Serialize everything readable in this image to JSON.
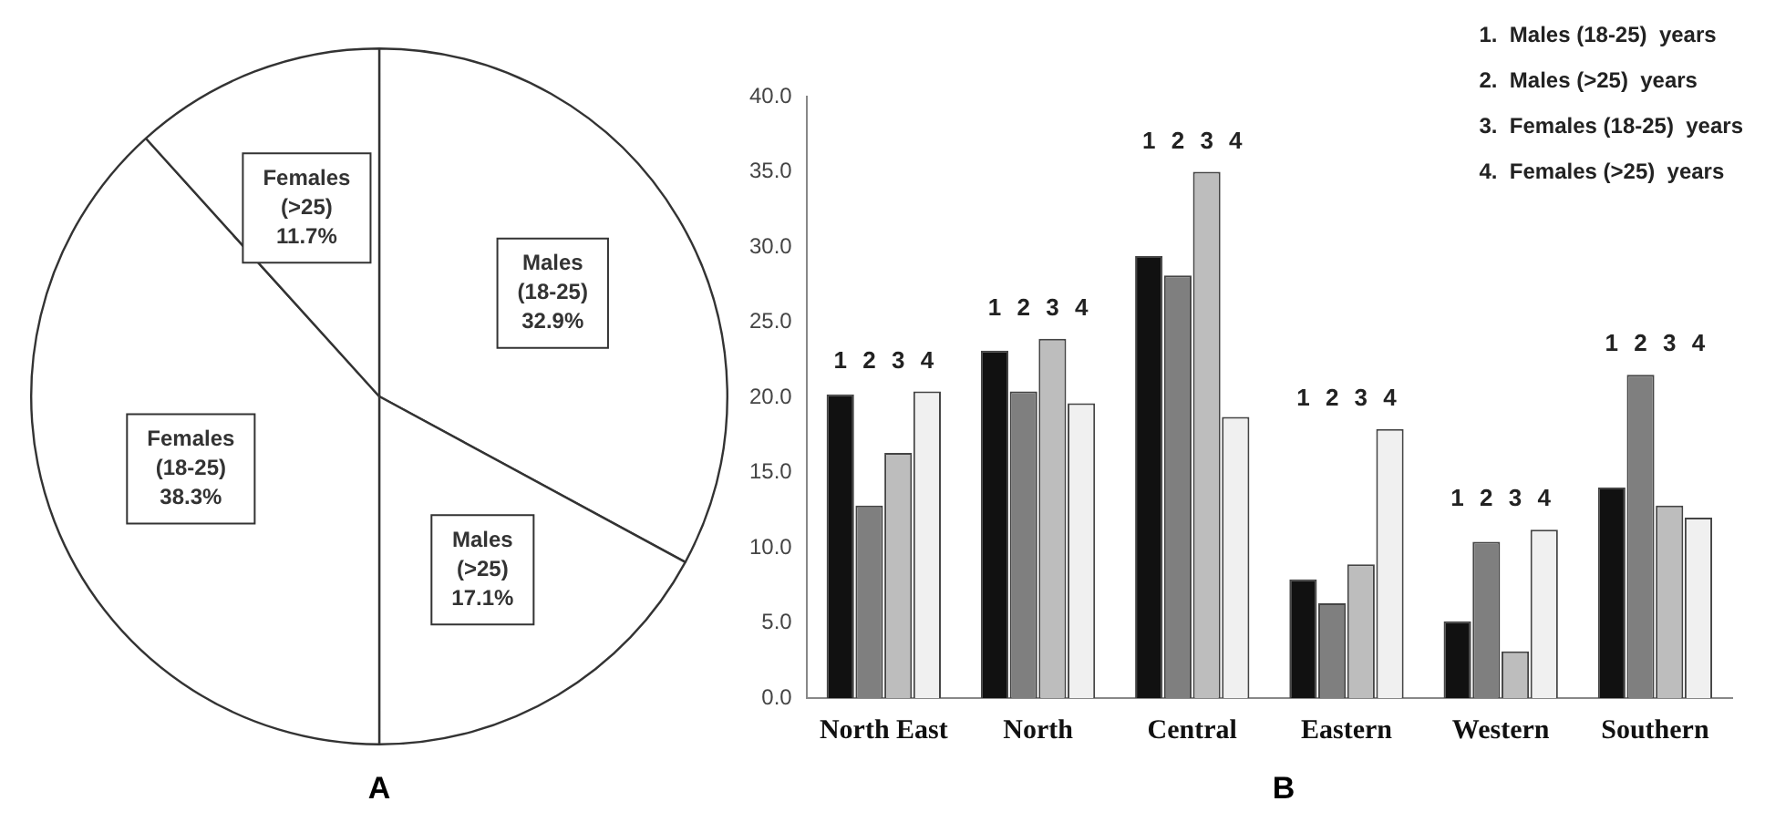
{
  "chart_data": [
    {
      "type": "pie",
      "categories": [
        "Males (18-25)",
        "Males (>25)",
        "Females (18-25)",
        "Females (>25)"
      ],
      "values": [
        32.9,
        17.1,
        38.3,
        11.7
      ],
      "colors": [
        "#ffffff",
        "#ffffff",
        "#ffffff",
        "#ffffff"
      ],
      "value_labels": [
        "32.9%",
        "17.1%",
        "38.3%",
        "11.7%"
      ],
      "annotations": [
        "A"
      ],
      "legend": false
    },
    {
      "type": "bar",
      "categories": [
        "North East",
        "North",
        "Central",
        "Eastern",
        "Western",
        "Southern"
      ],
      "series": [
        {
          "name": "1",
          "color": "#111111",
          "values": [
            20.2,
            23.1,
            29.4,
            7.9,
            5.1,
            14.0
          ]
        },
        {
          "name": "2",
          "color": "#7f7f7f",
          "values": [
            12.8,
            20.4,
            28.1,
            6.3,
            10.4,
            21.5
          ]
        },
        {
          "name": "3",
          "color": "#bdbdbd",
          "values": [
            16.3,
            23.9,
            35.0,
            8.9,
            3.1,
            12.8
          ]
        },
        {
          "name": "4",
          "color": "#f0f0f0",
          "values": [
            20.4,
            19.6,
            18.7,
            17.9,
            11.2,
            12.0
          ]
        }
      ],
      "ylim": [
        0,
        40
      ],
      "yticks": [
        {
          "value": 0,
          "label": "0.0"
        },
        {
          "value": 5,
          "label": "5.0"
        },
        {
          "value": 10,
          "label": "10.0"
        },
        {
          "value": 15,
          "label": "15.0"
        },
        {
          "value": 20,
          "label": "20.0"
        },
        {
          "value": 25,
          "label": "25.0"
        },
        {
          "value": 30,
          "label": "30.0"
        },
        {
          "value": 35,
          "label": "35.0"
        },
        {
          "value": 40,
          "label": "40.0"
        }
      ],
      "grid": false,
      "annotations": [
        "B",
        "1.  Males (18-25)  years",
        "2.  Males (>25)  years",
        "3.  Females (18-25)  years",
        "4.  Females (>25)  years"
      ]
    }
  ]
}
